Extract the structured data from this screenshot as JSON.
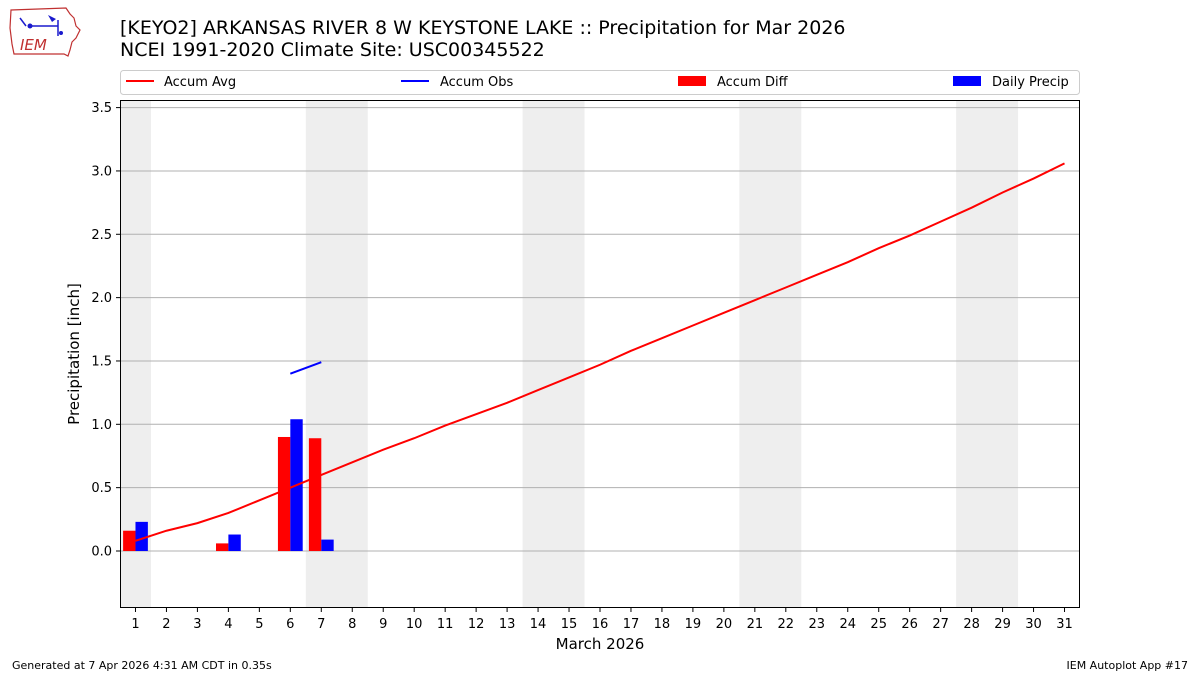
{
  "header": {
    "title_line1": "[KEYO2] ARKANSAS RIVER 8 W KEYSTONE LAKE :: Precipitation for Mar 2026",
    "title_line2": "NCEI 1991-2020 Climate Site: USC00345522",
    "logo_text": "IEM"
  },
  "footer": {
    "generated": "Generated at 7 Apr 2026 4:31 AM CDT in 0.35s",
    "app": "IEM Autoplot App #17"
  },
  "colors": {
    "accum_avg": "#ff0000",
    "accum_obs": "#0000ff",
    "accum_diff": "#ff0000",
    "daily_precip": "#0000ff",
    "weekend_shade": "#eeeeee",
    "grid": "#b0b0b0"
  },
  "chart_data": {
    "type": "bar",
    "title": "[KEYO2] ARKANSAS RIVER 8 W KEYSTONE LAKE :: Precipitation for Mar 2026",
    "subtitle": "NCEI 1991-2020 Climate Site: USC00345522",
    "xlabel": "March 2026",
    "ylabel": "Precipitation [inch]",
    "ylim": [
      -0.45,
      3.56
    ],
    "xlim": [
      0.5,
      31.5
    ],
    "yticks": [
      0.0,
      0.5,
      1.0,
      1.5,
      2.0,
      2.5,
      3.0,
      3.5
    ],
    "ytick_labels": [
      "0.0",
      "0.5",
      "1.0",
      "1.5",
      "2.0",
      "2.5",
      "3.0",
      "3.5"
    ],
    "x": [
      1,
      2,
      3,
      4,
      5,
      6,
      7,
      8,
      9,
      10,
      11,
      12,
      13,
      14,
      15,
      16,
      17,
      18,
      19,
      20,
      21,
      22,
      23,
      24,
      25,
      26,
      27,
      28,
      29,
      30,
      31
    ],
    "xtick_labels": [
      "1",
      "2",
      "3",
      "4",
      "5",
      "6",
      "7",
      "8",
      "9",
      "10",
      "11",
      "12",
      "13",
      "14",
      "15",
      "16",
      "17",
      "18",
      "19",
      "20",
      "21",
      "22",
      "23",
      "24",
      "25",
      "26",
      "27",
      "28",
      "29",
      "30",
      "31"
    ],
    "grid": "y",
    "legend_position": "top",
    "legend": [
      "Accum Avg",
      "Accum Obs",
      "Accum Diff",
      "Daily Precip"
    ],
    "weekend_spans": [
      [
        0.5,
        1.5
      ],
      [
        6.5,
        8.5
      ],
      [
        13.5,
        15.5
      ],
      [
        20.5,
        22.5
      ],
      [
        27.5,
        29.5
      ]
    ],
    "series": [
      {
        "name": "Accum Avg",
        "type": "line",
        "x": [
          1,
          2,
          3,
          4,
          5,
          6,
          7,
          8,
          9,
          10,
          11,
          12,
          13,
          14,
          15,
          16,
          17,
          18,
          19,
          20,
          21,
          22,
          23,
          24,
          25,
          26,
          27,
          28,
          29,
          30,
          31
        ],
        "values": [
          0.08,
          0.16,
          0.22,
          0.3,
          0.4,
          0.5,
          0.6,
          0.7,
          0.8,
          0.89,
          0.99,
          1.08,
          1.17,
          1.27,
          1.37,
          1.47,
          1.58,
          1.68,
          1.78,
          1.88,
          1.98,
          2.08,
          2.18,
          2.28,
          2.39,
          2.49,
          2.6,
          2.71,
          2.83,
          2.94,
          3.06
        ]
      },
      {
        "name": "Accum Obs",
        "type": "line",
        "x": [
          6,
          7
        ],
        "values": [
          1.4,
          1.49
        ]
      },
      {
        "name": "Accum Diff",
        "type": "bar",
        "x": [
          1,
          4,
          6,
          7
        ],
        "values": [
          0.16,
          0.06,
          0.9,
          0.89
        ]
      },
      {
        "name": "Daily Precip",
        "type": "bar",
        "x": [
          1,
          4,
          6,
          7
        ],
        "values": [
          0.23,
          0.13,
          1.04,
          0.09
        ]
      }
    ]
  }
}
